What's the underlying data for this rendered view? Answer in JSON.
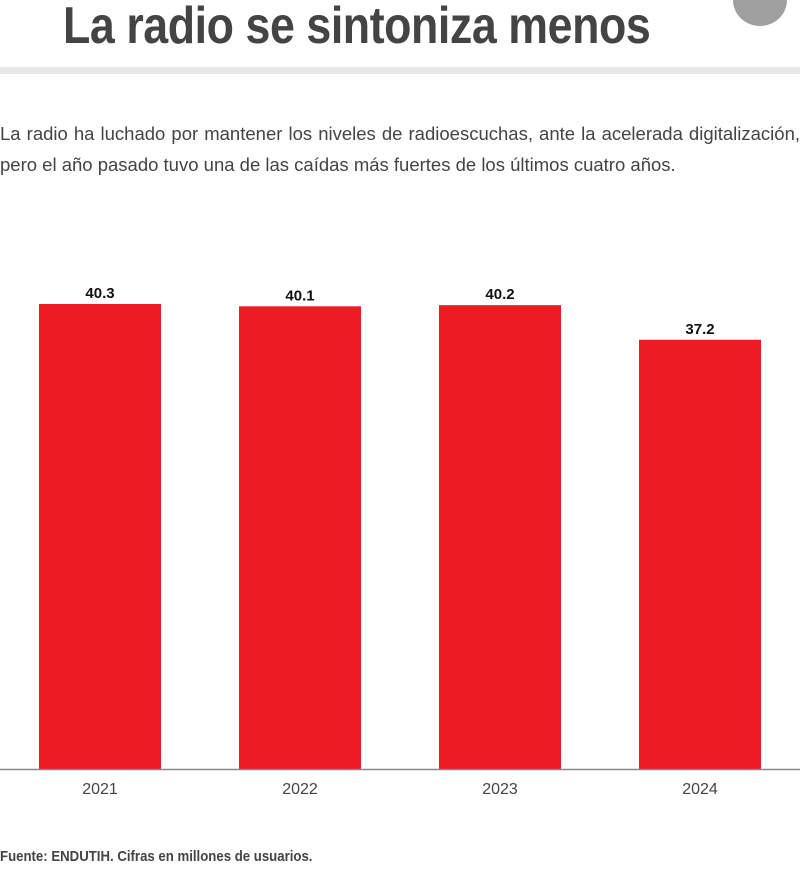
{
  "header": {
    "title": "La radio se sintoniza menos"
  },
  "description": "La radio ha luchado por mantener los niveles de radioescuchas, ante la acelerada digitalización, pero el año pasado tuvo una de las caídas más fuertes de los últimos cuatro años.",
  "source": "Fuente: ENDUTIH. Cifras en millones de usuarios.",
  "colors": {
    "bar": "#ec1c24",
    "text": "#444444"
  },
  "chart_data": {
    "type": "bar",
    "title": "La radio se sintoniza menos",
    "categories": [
      "2021",
      "2022",
      "2023",
      "2024"
    ],
    "values": [
      40.3,
      40.1,
      40.2,
      37.2
    ],
    "value_labels": [
      "40.3",
      "40.1",
      "40.2",
      "37.2"
    ],
    "xlabel": "",
    "ylabel": "Millones de usuarios",
    "ylim": [
      0,
      40.3
    ],
    "grid": false
  }
}
